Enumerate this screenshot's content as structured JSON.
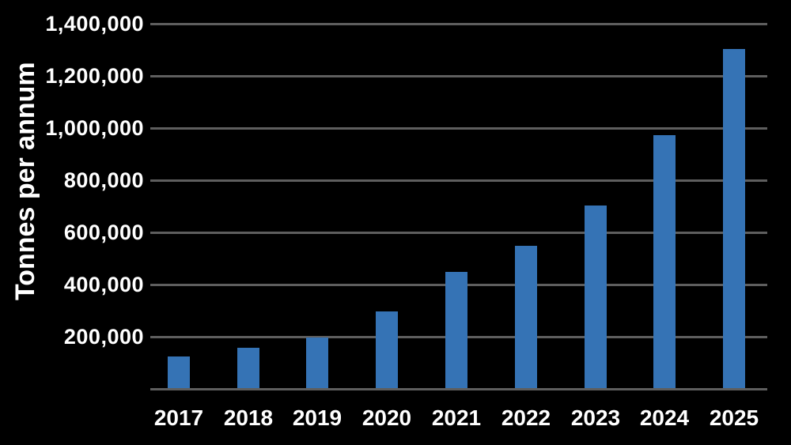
{
  "chart_data": {
    "type": "bar",
    "title": "",
    "xlabel": "",
    "ylabel": "Tonnes per annum",
    "categories": [
      "2017",
      "2018",
      "2019",
      "2020",
      "2021",
      "2022",
      "2023",
      "2024",
      "2025"
    ],
    "values": [
      120000,
      155000,
      195000,
      295000,
      445000,
      545000,
      700000,
      970000,
      1300000
    ],
    "ylim": [
      0,
      1400000
    ],
    "ytick_step": 200000,
    "ytick_labels": [
      "1,400,000",
      "1,200,000",
      "1,000,000",
      "800,000",
      "600,000",
      "400,000",
      "200,000"
    ],
    "grid": "horizontal gridlines on, vertical off",
    "legend_position": "none",
    "colors": {
      "background": "#000000",
      "bar": "#3573b5",
      "gridline": "#5e5e5e",
      "text": "#ffffff"
    }
  }
}
